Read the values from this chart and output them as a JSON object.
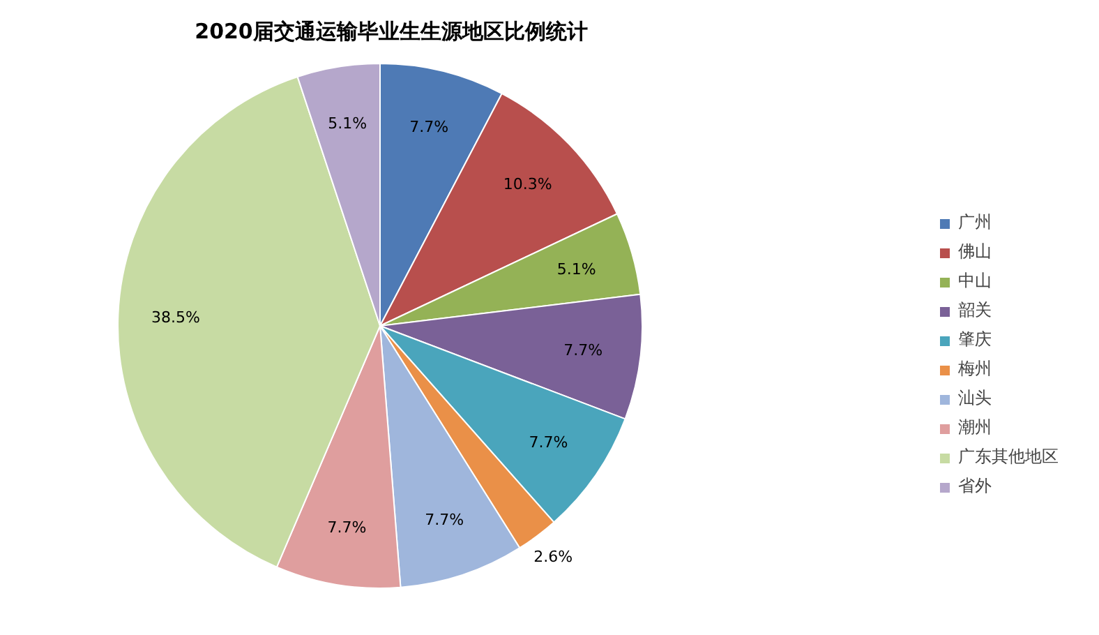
{
  "chart_data": {
    "type": "pie",
    "title": "2020届交通运输毕业生生源地区比例统计",
    "categories": [
      "广州",
      "佛山",
      "中山",
      "韶关",
      "肇庆",
      "梅州",
      "汕头",
      "潮州",
      "广东其他地区",
      "省外"
    ],
    "values": [
      7.7,
      10.3,
      5.1,
      7.7,
      7.7,
      2.6,
      7.7,
      7.7,
      38.5,
      5.1
    ],
    "colors": [
      "#4e7ab5",
      "#b84f4d",
      "#94b256",
      "#7a6197",
      "#4aa5bc",
      "#ea9048",
      "#9fb6dc",
      "#df9e9e",
      "#c7dba3",
      "#b5a7cb"
    ],
    "value_labels": [
      "7.7%",
      "10.3%",
      "5.1%",
      "7.7%",
      "7.7%",
      "2.6%",
      "7.7%",
      "7.7%",
      "38.5%",
      "5.1%"
    ],
    "legend": "right"
  }
}
